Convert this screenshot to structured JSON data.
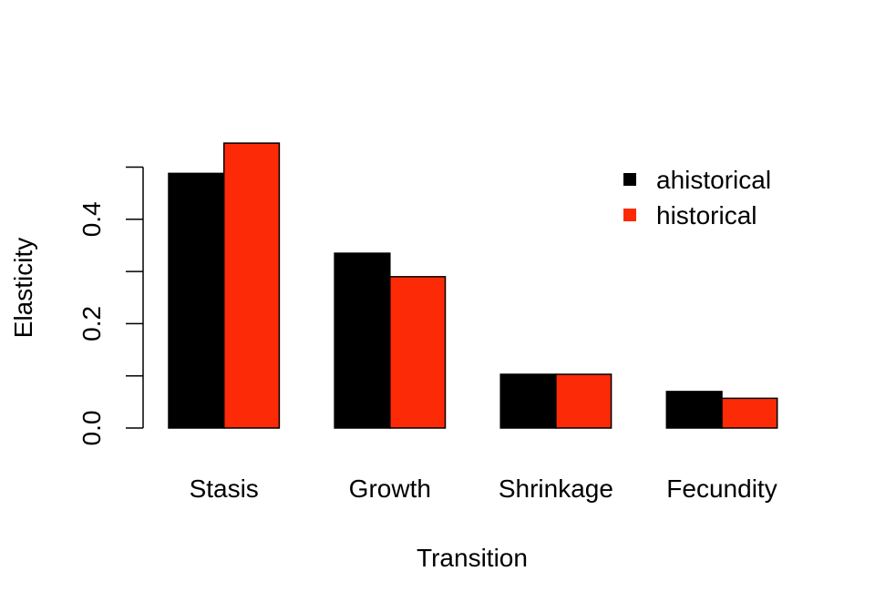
{
  "chart_data": {
    "type": "bar",
    "categories": [
      "Stasis",
      "Growth",
      "Shrinkage",
      "Fecundity"
    ],
    "series": [
      {
        "name": "ahistorical",
        "color": "#000000",
        "values": [
          0.488,
          0.335,
          0.103,
          0.07
        ]
      },
      {
        "name": "historical",
        "color": "#FD2A07",
        "values": [
          0.546,
          0.29,
          0.103,
          0.057
        ]
      }
    ],
    "xlabel": "Transition",
    "ylabel": "Elasticity",
    "ylim": [
      0,
      0.5
    ],
    "yticks": [
      0.0,
      0.1,
      0.2,
      0.3,
      0.4,
      0.5
    ],
    "ytick_labels": [
      "0.0",
      "",
      "0.2",
      "",
      "0.4",
      ""
    ],
    "grid": false,
    "legend": "top-right"
  }
}
